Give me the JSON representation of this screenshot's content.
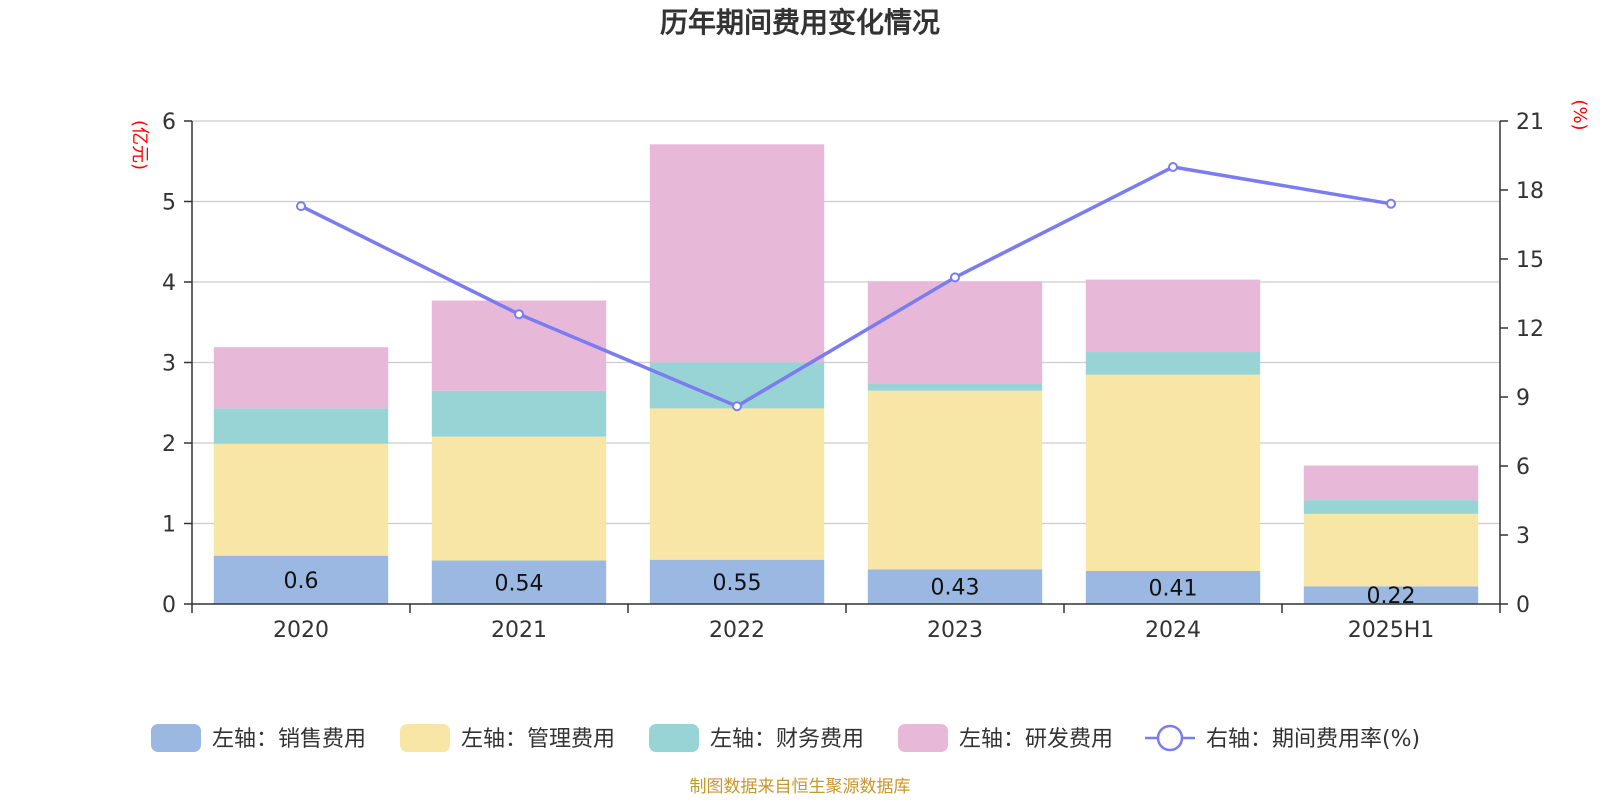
{
  "chart_data": {
    "type": "bar",
    "title": "历年期间费用变化情况",
    "categories": [
      "2020",
      "2021",
      "2022",
      "2023",
      "2024",
      "2025H1"
    ],
    "left_axis": {
      "unit": "(亿元)",
      "ylim": [
        0,
        6
      ],
      "ticks": [
        "0",
        "1",
        "2",
        "3",
        "4",
        "5",
        "6"
      ]
    },
    "right_axis": {
      "unit": "(%)",
      "ylim": [
        0,
        21
      ],
      "ticks": [
        "0",
        "3",
        "6",
        "9",
        "12",
        "15",
        "18",
        "21"
      ]
    },
    "series": [
      {
        "name": "左轴：销售费用",
        "axis": "left",
        "kind": "bar",
        "color": "#9bb8e2",
        "values": [
          0.6,
          0.54,
          0.55,
          0.43,
          0.41,
          0.22
        ],
        "labels": [
          "0.6",
          "0.54",
          "0.55",
          "0.43",
          "0.41",
          "0.22"
        ]
      },
      {
        "name": "左轴：管理费用",
        "axis": "left",
        "kind": "bar",
        "color": "#f7e6a6",
        "values": [
          1.39,
          1.54,
          1.88,
          2.22,
          2.44,
          0.9
        ]
      },
      {
        "name": "左轴：财务费用",
        "axis": "left",
        "kind": "bar",
        "color": "#98d4d6",
        "values": [
          0.44,
          0.57,
          0.57,
          0.09,
          0.28,
          0.17
        ]
      },
      {
        "name": "左轴：研发费用",
        "axis": "left",
        "kind": "bar",
        "color": "#e8b8d8",
        "values": [
          0.76,
          1.12,
          2.71,
          1.27,
          0.9,
          0.43
        ]
      },
      {
        "name": "右轴：期间费用率(%)",
        "axis": "right",
        "kind": "line",
        "color": "#7b7cf0",
        "values": [
          17.3,
          12.6,
          8.6,
          14.2,
          19.0,
          17.4
        ]
      }
    ],
    "grid": true,
    "legend_position": "bottom"
  },
  "source": "制图数据来自恒生聚源数据库"
}
